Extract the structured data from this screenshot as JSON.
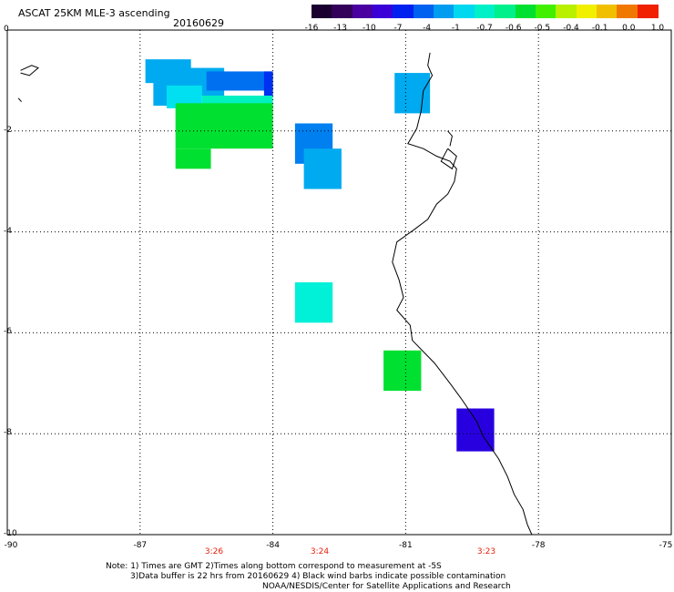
{
  "header": {
    "title": "ASCAT 25KM MLE-3 ascending",
    "date": "20160629"
  },
  "colorbar": {
    "colors": [
      "#1a0030",
      "#33005a",
      "#4a00a0",
      "#3a00d8",
      "#0020f0",
      "#0060f0",
      "#009cf0",
      "#00d8f0",
      "#00f0c8",
      "#00f08c",
      "#00e030",
      "#40f000",
      "#b8f000",
      "#f0f000",
      "#f0c000",
      "#f07800",
      "#f02000"
    ],
    "labels": [
      "-16",
      "-13",
      "-10",
      "-7",
      "-4",
      "-1",
      "-0.7",
      "-0.6",
      "-0.5",
      "-0.4",
      "-0.1",
      "0.0",
      "1.0"
    ]
  },
  "axes": {
    "x_labels": [
      "-90",
      "-87",
      "-84",
      "-81",
      "-78",
      "-75"
    ],
    "y_labels": [
      "0",
      "-2",
      "-4",
      "-6",
      "-8",
      "-10"
    ]
  },
  "time_labels": [
    "3:26",
    "3:24",
    "3:23"
  ],
  "notes": {
    "line1": "Note: 1) Times are GMT 2)Times along bottom correspond to measurement at -5S",
    "line2": "3)Data buffer is 22 hrs from 20160629 4) Black wind barbs indicate possible contamination",
    "line3": "NOAA/NESDIS/Center for Satellite Applications and Research"
  },
  "cells": [
    {
      "lon": -86.88,
      "lat": -0.58,
      "lon2": -85.85,
      "lat2": -1.05,
      "color": "#00aaf0"
    },
    {
      "lon": -86.2,
      "lat": -0.75,
      "lon2": -85.1,
      "lat2": -1.3,
      "color": "#00aaf0"
    },
    {
      "lon": -86.7,
      "lat": -1.0,
      "lon2": -85.9,
      "lat2": -1.5,
      "color": "#00aaf0"
    },
    {
      "lon": -85.5,
      "lat": -0.82,
      "lon2": -84.0,
      "lat2": -1.2,
      "color": "#0070f0"
    },
    {
      "lon": -84.2,
      "lat": -0.82,
      "lon2": -84.0,
      "lat2": -1.3,
      "color": "#0030f0"
    },
    {
      "lon": -86.4,
      "lat": -1.1,
      "lon2": -85.6,
      "lat2": -1.55,
      "color": "#00e0f0"
    },
    {
      "lon": -85.6,
      "lat": -1.3,
      "lon2": -84.0,
      "lat2": -1.7,
      "color": "#00f0c0"
    },
    {
      "lon": -86.2,
      "lat": -1.45,
      "lon2": -84.0,
      "lat2": -2.35,
      "color": "#00e030"
    },
    {
      "lon": -86.2,
      "lat": -2.35,
      "lon2": -85.4,
      "lat2": -2.75,
      "color": "#00e030"
    },
    {
      "lon": -83.5,
      "lat": -1.85,
      "lon2": -82.65,
      "lat2": -2.65,
      "color": "#0080f0"
    },
    {
      "lon": -83.3,
      "lat": -2.35,
      "lon2": -82.45,
      "lat2": -3.15,
      "color": "#00aaf0"
    },
    {
      "lon": -81.25,
      "lat": -0.85,
      "lon2": -80.45,
      "lat2": -1.65,
      "color": "#00aaf0"
    },
    {
      "lon": -83.5,
      "lat": -5.0,
      "lon2": -82.65,
      "lat2": -5.8,
      "color": "#00f0d8"
    },
    {
      "lon": -81.5,
      "lat": -6.35,
      "lon2": -80.65,
      "lat2": -7.15,
      "color": "#00e030"
    },
    {
      "lon": -79.85,
      "lat": -7.5,
      "lon2": -79.0,
      "lat2": -8.35,
      "color": "#2800e0"
    }
  ],
  "coast": [
    [
      -80.45,
      -0.45
    ],
    [
      -80.5,
      -0.7
    ],
    [
      -80.4,
      -0.9
    ],
    [
      -80.6,
      -1.2
    ],
    [
      -80.65,
      -1.6
    ],
    [
      -80.75,
      -1.95
    ],
    [
      -80.95,
      -2.25
    ],
    [
      -80.6,
      -2.35
    ],
    [
      -80.3,
      -2.5
    ],
    [
      -80.0,
      -2.6
    ],
    [
      -79.85,
      -2.75
    ],
    [
      -79.9,
      -3.0
    ],
    [
      -80.05,
      -3.25
    ],
    [
      -80.3,
      -3.45
    ],
    [
      -80.5,
      -3.75
    ],
    [
      -80.8,
      -3.95
    ],
    [
      -81.2,
      -4.2
    ],
    [
      -81.3,
      -4.6
    ],
    [
      -81.15,
      -4.95
    ],
    [
      -81.05,
      -5.3
    ],
    [
      -81.2,
      -5.55
    ],
    [
      -80.9,
      -5.85
    ],
    [
      -80.85,
      -6.15
    ],
    [
      -80.35,
      -6.6
    ],
    [
      -80.0,
      -7.0
    ],
    [
      -79.75,
      -7.3
    ],
    [
      -79.4,
      -7.75
    ],
    [
      -79.25,
      -8.05
    ],
    [
      -78.9,
      -8.5
    ],
    [
      -78.7,
      -8.85
    ],
    [
      -78.55,
      -9.2
    ],
    [
      -78.35,
      -9.5
    ],
    [
      -78.25,
      -9.8
    ],
    [
      -78.15,
      -10.0
    ]
  ]
}
